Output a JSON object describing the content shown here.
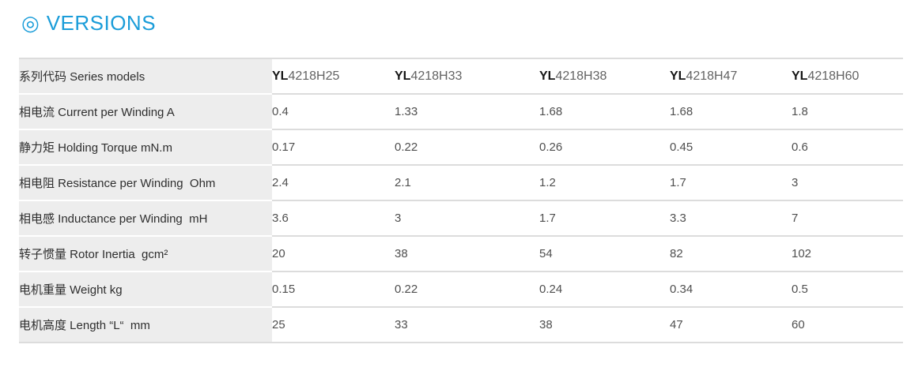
{
  "header": {
    "icon": "◎",
    "title": "VERSIONS",
    "accent_color": "#1b9dd9"
  },
  "table": {
    "label_header": "系列代码 Series models",
    "models": [
      {
        "prefix": "YL",
        "rest": "4218H25"
      },
      {
        "prefix": "YL",
        "rest": "4218H33"
      },
      {
        "prefix": "YL",
        "rest": "4218H38"
      },
      {
        "prefix": "YL",
        "rest": "4218H47"
      },
      {
        "prefix": "YL",
        "rest": "4218H60"
      }
    ],
    "rows": [
      {
        "label": "相电流 Current per Winding A",
        "values": [
          "0.4",
          "1.33",
          "1.68",
          "1.68",
          "1.8"
        ]
      },
      {
        "label": "静力矩 Holding Torque mN.m",
        "values": [
          "0.17",
          "0.22",
          "0.26",
          "0.45",
          "0.6"
        ]
      },
      {
        "label": "相电阻 Resistance per Winding  Ohm",
        "values": [
          "2.4",
          "2.1",
          "1.2",
          "1.7",
          "3"
        ]
      },
      {
        "label": "相电感 Inductance per Winding  mH",
        "values": [
          "3.6",
          "3",
          "1.7",
          "3.3",
          "7"
        ]
      },
      {
        "label": "转子惯量 Rotor Inertia  gcm²",
        "values": [
          "20",
          "38",
          "54",
          "82",
          "102"
        ]
      },
      {
        "label": "电机重量 Weight kg",
        "values": [
          "0.15",
          "0.22",
          "0.24",
          "0.34",
          "0.5"
        ]
      },
      {
        "label": "电机高度 Length “L“  mm",
        "values": [
          "25",
          "33",
          "38",
          "47",
          "60"
        ]
      }
    ]
  }
}
